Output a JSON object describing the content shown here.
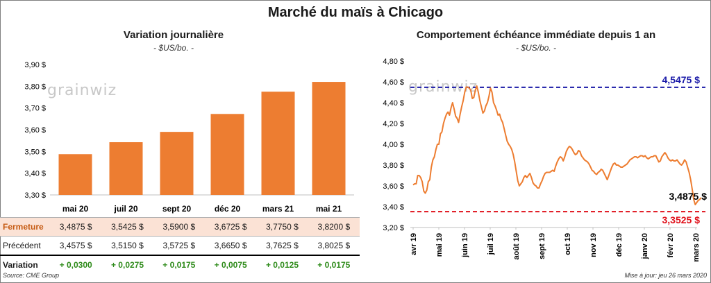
{
  "title": "Marché du maïs à Chicago",
  "left": {
    "title": "Variation  journalière",
    "unit": "- $US/bo. -",
    "watermark": "grainwiz",
    "chart_data": {
      "type": "bar",
      "categories": [
        "mai 20",
        "juil 20",
        "sept 20",
        "déc 20",
        "mars 21",
        "mai 21"
      ],
      "values": [
        3.4875,
        3.5425,
        3.59,
        3.6725,
        3.775,
        3.82
      ],
      "ylim": [
        3.3,
        3.9
      ],
      "yticks": [
        "3,30 $",
        "3,40 $",
        "3,50 $",
        "3,60 $",
        "3,70 $",
        "3,80 $",
        "3,90 $"
      ],
      "ytick_values": [
        3.3,
        3.4,
        3.5,
        3.6,
        3.7,
        3.8,
        3.9
      ],
      "bar_color": "#ed7d31"
    },
    "table": {
      "rows": [
        {
          "label": "Fermeture",
          "cells": [
            "3,4875  $",
            "3,5425  $",
            "3,5900  $",
            "3,6725  $",
            "3,7750  $",
            "3,8200  $"
          ]
        },
        {
          "label": "Précédent",
          "cells": [
            "3,4575  $",
            "3,5150  $",
            "3,5725  $",
            "3,6650  $",
            "3,7625  $",
            "3,8025  $"
          ]
        },
        {
          "label": "Variation",
          "cells": [
            "+ 0,0300",
            "+ 0,0275",
            "+ 0,0175",
            "+ 0,0075",
            "+ 0,0125",
            "+ 0,0175"
          ]
        }
      ]
    },
    "source": "Source: CME Group"
  },
  "right": {
    "title": "Comportement  échéance immédiate depuis 1 an",
    "unit": "- $US/bo. -",
    "watermark": "grainwiz",
    "chart_data": {
      "type": "line",
      "ylim": [
        3.2,
        4.8
      ],
      "yticks": [
        "3,20 $",
        "3,40 $",
        "3,60 $",
        "3,80 $",
        "4,00 $",
        "4,20 $",
        "4,40 $",
        "4,60 $",
        "4,80 $"
      ],
      "ytick_values": [
        3.2,
        3.4,
        3.6,
        3.8,
        4.0,
        4.2,
        4.4,
        4.6,
        4.8
      ],
      "xticks": [
        "avr 19",
        "mai 19",
        "juin 19",
        "juil 19",
        "août 19",
        "sept 19",
        "oct 19",
        "nov 19",
        "déc 19",
        "janv 20",
        "févr 20",
        "mars 20"
      ],
      "line_color": "#ed7d31",
      "series_values": [
        3.61,
        3.62,
        3.62,
        3.7,
        3.7,
        3.68,
        3.64,
        3.55,
        3.53,
        3.56,
        3.64,
        3.66,
        3.78,
        3.85,
        3.88,
        3.95,
        4.0,
        4.0,
        4.1,
        4.12,
        4.2,
        4.25,
        4.29,
        4.31,
        4.28,
        4.35,
        4.4,
        4.34,
        4.27,
        4.25,
        4.21,
        4.29,
        4.36,
        4.42,
        4.5,
        4.55,
        4.55,
        4.54,
        4.52,
        4.44,
        4.45,
        4.52,
        4.56,
        4.5,
        4.42,
        4.36,
        4.3,
        4.32,
        4.37,
        4.4,
        4.46,
        4.54,
        4.5,
        4.4,
        4.37,
        4.33,
        4.28,
        4.29,
        4.24,
        4.21,
        4.15,
        4.09,
        4.03,
        4.0,
        3.98,
        3.95,
        3.9,
        3.83,
        3.74,
        3.65,
        3.6,
        3.62,
        3.64,
        3.68,
        3.7,
        3.68,
        3.7,
        3.72,
        3.68,
        3.63,
        3.61,
        3.6,
        3.58,
        3.58,
        3.62,
        3.65,
        3.69,
        3.72,
        3.73,
        3.73,
        3.73,
        3.74,
        3.75,
        3.74,
        3.79,
        3.83,
        3.86,
        3.88,
        3.87,
        3.84,
        3.88,
        3.93,
        3.96,
        3.98,
        3.97,
        3.95,
        3.92,
        3.9,
        3.91,
        3.94,
        3.93,
        3.89,
        3.87,
        3.85,
        3.84,
        3.83,
        3.81,
        3.78,
        3.75,
        3.74,
        3.72,
        3.71,
        3.73,
        3.74,
        3.76,
        3.75,
        3.72,
        3.69,
        3.66,
        3.7,
        3.74,
        3.78,
        3.81,
        3.82,
        3.8,
        3.8,
        3.79,
        3.78,
        3.78,
        3.79,
        3.8,
        3.81,
        3.83,
        3.85,
        3.86,
        3.87,
        3.88,
        3.88,
        3.87,
        3.88,
        3.89,
        3.89,
        3.88,
        3.89,
        3.87,
        3.86,
        3.87,
        3.88,
        3.88,
        3.89,
        3.89,
        3.86,
        3.83,
        3.84,
        3.88,
        3.9,
        3.92,
        3.9,
        3.87,
        3.85,
        3.84,
        3.85,
        3.84,
        3.84,
        3.85,
        3.83,
        3.81,
        3.8,
        3.82,
        3.85,
        3.83,
        3.78,
        3.73,
        3.66,
        3.57,
        3.47,
        3.42,
        3.44,
        3.46,
        3.47,
        3.4875
      ],
      "current": {
        "value": 3.4875,
        "label": "3,4875 $"
      },
      "high": {
        "value": 4.5475,
        "label": "4,5475 $",
        "color": "#1a1aa8"
      },
      "low": {
        "value": 3.3525,
        "label": "3,3525 $",
        "color": "#e0101a"
      }
    },
    "updated": "Mise à jour: jeu 26 mars 2020"
  }
}
